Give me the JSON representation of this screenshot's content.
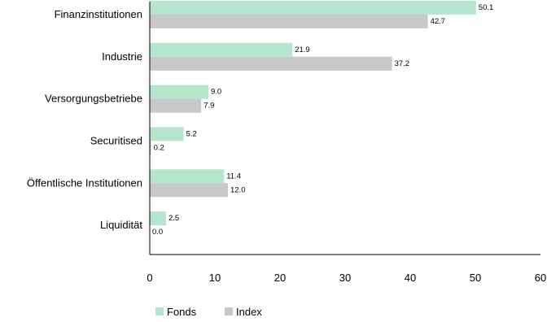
{
  "chart_data": {
    "type": "bar",
    "orientation": "horizontal",
    "categories": [
      "Finanzinstitutionen",
      "Industrie",
      "Versorgungsbetriebe",
      "Securitised",
      "Öffentlische Institutionen",
      "Liquidität"
    ],
    "series": [
      {
        "name": "Fonds",
        "values": [
          50.1,
          21.9,
          9.0,
          5.2,
          11.4,
          2.5
        ],
        "color": "#b3e6cc"
      },
      {
        "name": "Index",
        "values": [
          42.7,
          37.2,
          7.9,
          0.2,
          12.0,
          0.0
        ],
        "color": "#c8c8c8"
      }
    ],
    "data_labels": {
      "Fonds": [
        "50.1",
        "21.9",
        "9.0",
        "5.2",
        "11.4",
        "2.5"
      ],
      "Index": [
        "42.7",
        "37.2",
        "7.9",
        "0.2",
        "12.0",
        "0.0"
      ]
    },
    "xlim": [
      0,
      60
    ],
    "xticks": [
      0,
      10,
      20,
      30,
      40,
      50,
      60
    ],
    "title": "",
    "xlabel": "",
    "ylabel": "",
    "grid": false,
    "legend_position": "bottom-left"
  }
}
